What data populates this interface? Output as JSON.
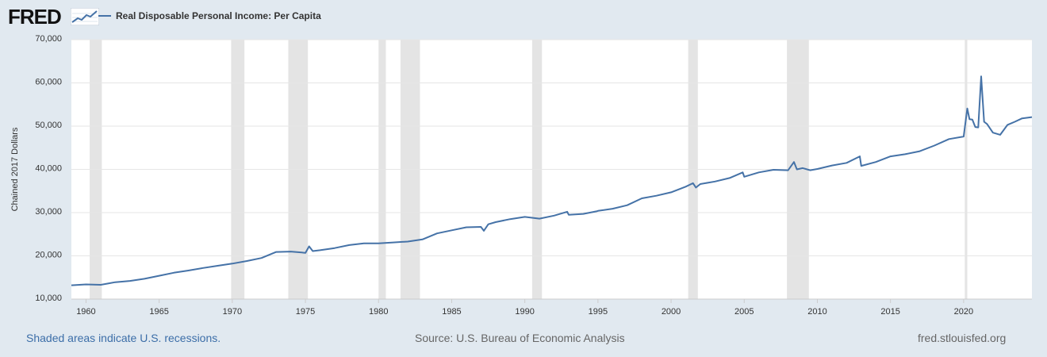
{
  "brand": {
    "logo_text": "FRED",
    "logo_icon": "line-chart-icon"
  },
  "footer": {
    "recession_note": "Shaded areas indicate U.S. recessions.",
    "source": "Source: U.S. Bureau of Economic Analysis",
    "site": "fred.stlouisfed.org"
  },
  "colors": {
    "series": "#4572a7",
    "recession": "#e4e4e4",
    "background": "#e1e9f0",
    "plot": "#ffffff"
  },
  "chart_data": {
    "type": "line",
    "title": "",
    "xlabel": "",
    "ylabel": "Chained 2017 Dollars",
    "ylim": [
      10000,
      70000
    ],
    "xlim": [
      1959.0,
      2024.67
    ],
    "grid": true,
    "legend": "top-left",
    "x_ticks": [
      "1960",
      "1965",
      "1970",
      "1975",
      "1980",
      "1985",
      "1990",
      "1995",
      "2000",
      "2005",
      "2010",
      "2015",
      "2020"
    ],
    "y_ticks": [
      "10,000",
      "20,000",
      "30,000",
      "40,000",
      "50,000",
      "60,000",
      "70,000"
    ],
    "recessions": [
      [
        1960.25,
        1961.08
      ],
      [
        1969.92,
        1970.83
      ],
      [
        1973.83,
        1975.17
      ],
      [
        1980.0,
        1980.5
      ],
      [
        1981.5,
        1982.83
      ],
      [
        1990.5,
        1991.17
      ],
      [
        2001.17,
        2001.83
      ],
      [
        2007.92,
        2009.42
      ],
      [
        2020.08,
        2020.25
      ]
    ],
    "series": [
      {
        "name": "Real Disposable Personal Income: Per Capita",
        "points": [
          [
            1959.0,
            13200
          ],
          [
            1960.0,
            13400
          ],
          [
            1960.5,
            13350
          ],
          [
            1961.0,
            13300
          ],
          [
            1961.5,
            13600
          ],
          [
            1962.0,
            13900
          ],
          [
            1963.0,
            14200
          ],
          [
            1964.0,
            14700
          ],
          [
            1965.0,
            15400
          ],
          [
            1966.0,
            16100
          ],
          [
            1967.0,
            16600
          ],
          [
            1968.0,
            17200
          ],
          [
            1969.0,
            17700
          ],
          [
            1970.0,
            18200
          ],
          [
            1971.0,
            18800
          ],
          [
            1972.0,
            19500
          ],
          [
            1973.0,
            20900
          ],
          [
            1974.0,
            21000
          ],
          [
            1975.0,
            20700
          ],
          [
            1975.25,
            22200
          ],
          [
            1975.5,
            21100
          ],
          [
            1976.0,
            21300
          ],
          [
            1977.0,
            21800
          ],
          [
            1978.0,
            22500
          ],
          [
            1979.0,
            22900
          ],
          [
            1980.0,
            22900
          ],
          [
            1981.0,
            23100
          ],
          [
            1982.0,
            23300
          ],
          [
            1983.0,
            23800
          ],
          [
            1984.0,
            25200
          ],
          [
            1985.0,
            25900
          ],
          [
            1986.0,
            26600
          ],
          [
            1987.0,
            26700
          ],
          [
            1987.2,
            25800
          ],
          [
            1987.5,
            27300
          ],
          [
            1988.0,
            27800
          ],
          [
            1989.0,
            28500
          ],
          [
            1990.0,
            29000
          ],
          [
            1991.0,
            28600
          ],
          [
            1992.0,
            29300
          ],
          [
            1992.9,
            30200
          ],
          [
            1993.0,
            29500
          ],
          [
            1994.0,
            29700
          ],
          [
            1994.9,
            30300
          ],
          [
            1995.0,
            30400
          ],
          [
            1996.0,
            30900
          ],
          [
            1997.0,
            31700
          ],
          [
            1998.0,
            33300
          ],
          [
            1999.0,
            33900
          ],
          [
            2000.0,
            34700
          ],
          [
            2001.0,
            36000
          ],
          [
            2001.5,
            36800
          ],
          [
            2001.7,
            35800
          ],
          [
            2002.0,
            36600
          ],
          [
            2003.0,
            37200
          ],
          [
            2004.0,
            38000
          ],
          [
            2004.9,
            39300
          ],
          [
            2005.0,
            38300
          ],
          [
            2006.0,
            39300
          ],
          [
            2007.0,
            39900
          ],
          [
            2008.0,
            39800
          ],
          [
            2008.4,
            41700
          ],
          [
            2008.6,
            40000
          ],
          [
            2009.0,
            40300
          ],
          [
            2009.5,
            39800
          ],
          [
            2010.0,
            40100
          ],
          [
            2011.0,
            40900
          ],
          [
            2012.0,
            41500
          ],
          [
            2012.9,
            43000
          ],
          [
            2013.0,
            40800
          ],
          [
            2014.0,
            41700
          ],
          [
            2015.0,
            43000
          ],
          [
            2016.0,
            43500
          ],
          [
            2017.0,
            44200
          ],
          [
            2018.0,
            45500
          ],
          [
            2019.0,
            47000
          ],
          [
            2020.0,
            47600
          ],
          [
            2020.25,
            54100
          ],
          [
            2020.4,
            51600
          ],
          [
            2020.6,
            51500
          ],
          [
            2020.8,
            49800
          ],
          [
            2021.0,
            49700
          ],
          [
            2021.2,
            61500
          ],
          [
            2021.4,
            51000
          ],
          [
            2021.6,
            50500
          ],
          [
            2022.0,
            48500
          ],
          [
            2022.5,
            48000
          ],
          [
            2023.0,
            50300
          ],
          [
            2023.5,
            51000
          ],
          [
            2024.0,
            51800
          ],
          [
            2024.67,
            52100
          ]
        ]
      }
    ]
  }
}
